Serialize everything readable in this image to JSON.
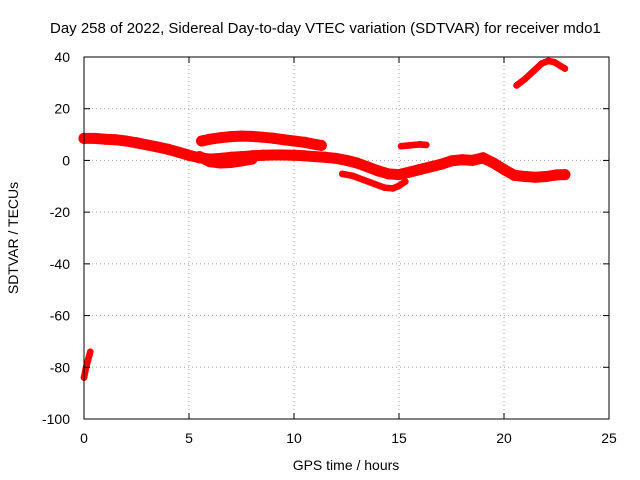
{
  "chart_data": {
    "type": "scatter",
    "title": "Day 258 of 2022, Sidereal Day-to-day VTEC variation (SDTVAR) for receiver mdo1",
    "xlabel": "GPS time / hours",
    "ylabel": "SDTVAR / TECUs",
    "xlim": [
      0,
      25
    ],
    "ylim": [
      -100,
      40
    ],
    "xticks": [
      "0",
      "5",
      "10",
      "15",
      "20",
      "25"
    ],
    "yticks": [
      "40",
      "20",
      "0",
      "-20",
      "-40",
      "-60",
      "-80",
      "-100"
    ],
    "grid": true,
    "color": "#ff0000",
    "series": [
      {
        "name": "track-early-low",
        "x": [
          0.0,
          0.1,
          0.2,
          0.3
        ],
        "y": [
          -84,
          -80,
          -77,
          -74
        ],
        "width": 3
      },
      {
        "name": "track-main",
        "x": [
          0.0,
          0.5,
          1.0,
          1.5,
          2.0,
          2.5,
          3.0,
          3.5,
          4.0,
          4.5,
          5.0,
          5.5,
          6.0,
          6.5,
          7.0,
          7.5,
          8.0,
          8.5,
          9.0,
          9.5,
          10.0,
          10.5,
          11.0,
          11.5,
          12.0,
          12.5,
          13.0,
          13.5,
          14.0,
          14.5,
          15.0,
          15.5,
          16.0,
          16.5,
          17.0,
          17.5,
          18.0,
          18.5,
          19.0,
          19.5,
          20.0,
          20.5,
          21.0,
          21.5,
          22.0,
          22.5,
          22.9
        ],
        "y": [
          8.5,
          8.5,
          8.2,
          8.0,
          7.5,
          6.8,
          6.0,
          5.2,
          4.3,
          3.2,
          2.0,
          1.0,
          0.5,
          0.8,
          1.2,
          1.5,
          1.8,
          2.0,
          2.1,
          2.1,
          2.0,
          1.8,
          1.5,
          1.2,
          0.8,
          0.0,
          -1.0,
          -2.5,
          -4.0,
          -5.2,
          -5.5,
          -4.5,
          -3.5,
          -2.5,
          -1.5,
          -0.2,
          0.3,
          0.0,
          1.0,
          -1.0,
          -3.5,
          -5.8,
          -6.2,
          -6.5,
          -6.2,
          -5.6,
          -5.5
        ],
        "width": 5
      },
      {
        "name": "track-dip-lower",
        "x": [
          5.5,
          6.0,
          6.5,
          7.0,
          7.5,
          8.0
        ],
        "y": [
          1.5,
          -0.5,
          -1.0,
          -0.8,
          -0.2,
          0.5
        ],
        "width": 5
      },
      {
        "name": "track-upper-mid",
        "x": [
          5.6,
          6.0,
          6.5,
          7.0,
          7.5,
          8.0,
          8.5,
          9.0,
          9.5,
          10.0,
          10.5,
          11.0,
          11.3
        ],
        "y": [
          7.5,
          8.2,
          8.8,
          9.2,
          9.4,
          9.3,
          9.0,
          8.6,
          8.0,
          7.5,
          7.0,
          6.2,
          5.8
        ],
        "width": 5
      },
      {
        "name": "track-dip-deep",
        "x": [
          12.3,
          12.8,
          13.3,
          13.8,
          14.3,
          14.7,
          15.0,
          15.3
        ],
        "y": [
          -5.2,
          -6.0,
          -7.5,
          -9.0,
          -10.5,
          -10.8,
          -9.8,
          -8.2
        ],
        "width": 3
      },
      {
        "name": "track-short-15-16",
        "x": [
          15.1,
          15.5,
          16.0,
          16.3
        ],
        "y": [
          5.5,
          5.8,
          6.2,
          6.0
        ],
        "width": 3
      },
      {
        "name": "track-late-high",
        "x": [
          20.6,
          21.0,
          21.4,
          21.8,
          22.1,
          22.4,
          22.7,
          22.9
        ],
        "y": [
          29.0,
          31.5,
          34.5,
          37.5,
          38.5,
          38.0,
          36.5,
          35.5
        ],
        "width": 3
      }
    ]
  }
}
